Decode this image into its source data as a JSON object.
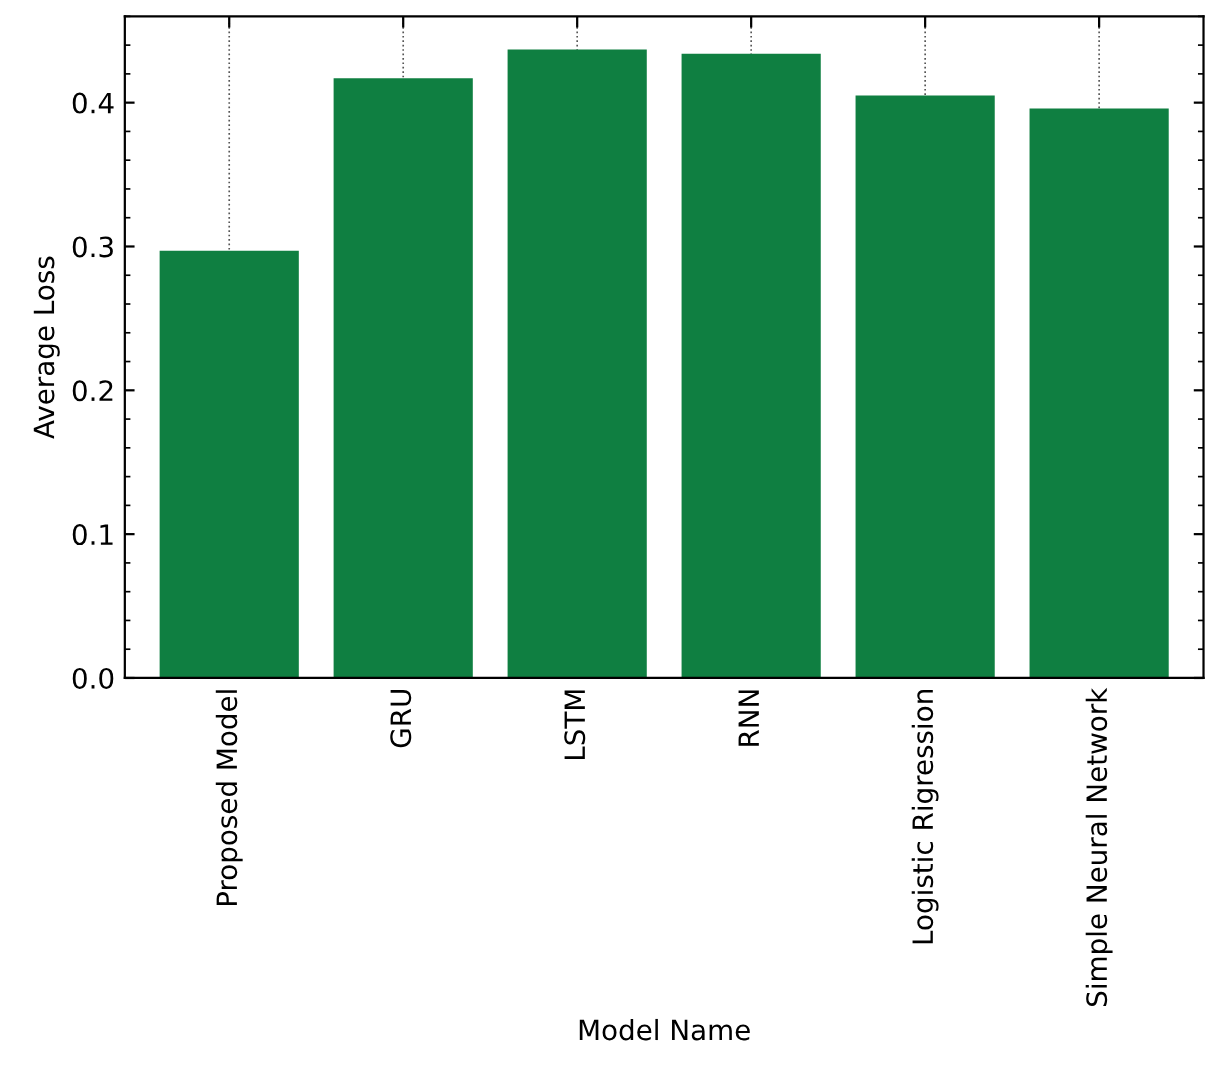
{
  "chart_data": {
    "type": "bar",
    "xlabel": "Model Name",
    "ylabel": "Average Loss",
    "categories": [
      "Proposed Model",
      "GRU",
      "LSTM",
      "RNN",
      "Logistic Rigression",
      "Simple Neural Network"
    ],
    "values": [
      0.297,
      0.417,
      0.437,
      0.434,
      0.405,
      0.396
    ],
    "color": "#0f7f41",
    "ylim": [
      0,
      0.46
    ],
    "yticks": [
      {
        "value": 0,
        "label": "0.0"
      },
      0.1,
      0.2,
      0.3,
      0.4
    ],
    "grid": "x"
  }
}
